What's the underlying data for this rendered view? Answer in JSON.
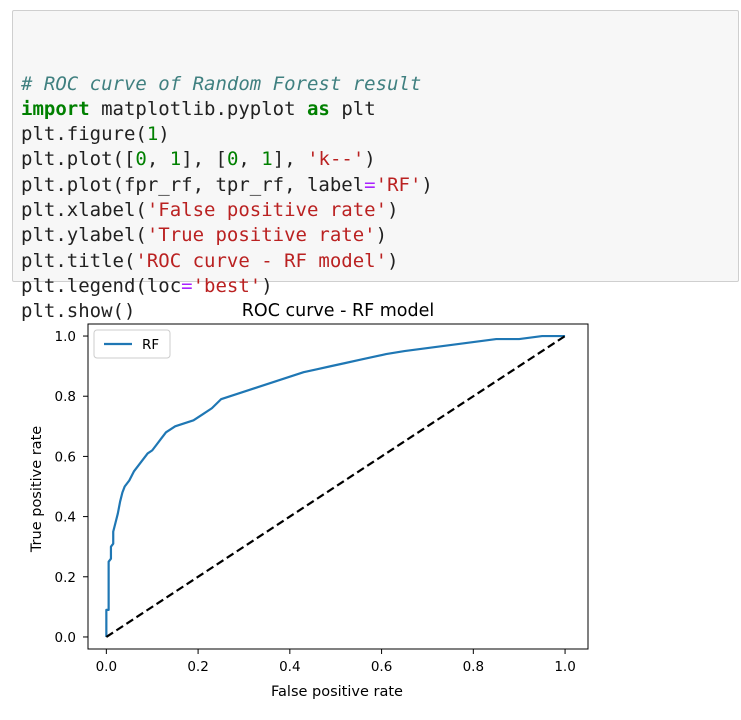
{
  "code": {
    "lines": [
      [
        {
          "t": "# ROC curve of Random Forest result",
          "c": "comment"
        }
      ],
      [
        {
          "t": "import",
          "c": "kw"
        },
        {
          "t": " matplotlib.pyplot ",
          "c": ""
        },
        {
          "t": "as",
          "c": "kw"
        },
        {
          "t": " plt",
          "c": ""
        }
      ],
      [
        {
          "t": "plt.figure(",
          "c": ""
        },
        {
          "t": "1",
          "c": "num"
        },
        {
          "t": ")",
          "c": ""
        }
      ],
      [
        {
          "t": "plt.plot([",
          "c": ""
        },
        {
          "t": "0",
          "c": "num"
        },
        {
          "t": ", ",
          "c": ""
        },
        {
          "t": "1",
          "c": "num"
        },
        {
          "t": "], [",
          "c": ""
        },
        {
          "t": "0",
          "c": "num"
        },
        {
          "t": ", ",
          "c": ""
        },
        {
          "t": "1",
          "c": "num"
        },
        {
          "t": "], ",
          "c": ""
        },
        {
          "t": "'k--'",
          "c": "str"
        },
        {
          "t": ")",
          "c": ""
        }
      ],
      [
        {
          "t": "plt.plot(fpr_rf, tpr_rf, label",
          "c": ""
        },
        {
          "t": "=",
          "c": "op"
        },
        {
          "t": "'RF'",
          "c": "str"
        },
        {
          "t": ")",
          "c": ""
        }
      ],
      [
        {
          "t": "plt.xlabel(",
          "c": ""
        },
        {
          "t": "'False positive rate'",
          "c": "str"
        },
        {
          "t": ")",
          "c": ""
        }
      ],
      [
        {
          "t": "plt.ylabel(",
          "c": ""
        },
        {
          "t": "'True positive rate'",
          "c": "str"
        },
        {
          "t": ")",
          "c": ""
        }
      ],
      [
        {
          "t": "plt.title(",
          "c": ""
        },
        {
          "t": "'ROC curve - RF model'",
          "c": "str"
        },
        {
          "t": ")",
          "c": ""
        }
      ],
      [
        {
          "t": "plt.legend(loc",
          "c": ""
        },
        {
          "t": "=",
          "c": "op"
        },
        {
          "t": "'best'",
          "c": "str"
        },
        {
          "t": ")",
          "c": ""
        }
      ],
      [
        {
          "t": "plt.show()",
          "c": ""
        }
      ]
    ]
  },
  "chart_data": {
    "type": "line",
    "title": "ROC curve - RF model",
    "xlabel": "False positive rate",
    "ylabel": "True positive rate",
    "xlim": [
      -0.04,
      1.05
    ],
    "ylim": [
      -0.04,
      1.04
    ],
    "xticks": [
      0.0,
      0.2,
      0.4,
      0.6,
      0.8,
      1.0
    ],
    "xtick_labels": [
      "0.0",
      "0.2",
      "0.4",
      "0.6",
      "0.8",
      "1.0"
    ],
    "yticks": [
      0.0,
      0.2,
      0.4,
      0.6,
      0.8,
      1.0
    ],
    "ytick_labels": [
      "0.0",
      "0.2",
      "0.4",
      "0.6",
      "0.8",
      "1.0"
    ],
    "grid": false,
    "legend_position": "upper-left",
    "series": [
      {
        "name": "RF",
        "style": "solid",
        "color": "#1f77b4",
        "x": [
          0.0,
          0.0,
          0.005,
          0.005,
          0.01,
          0.01,
          0.015,
          0.015,
          0.02,
          0.025,
          0.03,
          0.035,
          0.04,
          0.045,
          0.05,
          0.06,
          0.07,
          0.08,
          0.09,
          0.1,
          0.11,
          0.12,
          0.13,
          0.14,
          0.15,
          0.17,
          0.19,
          0.21,
          0.23,
          0.25,
          0.27,
          0.29,
          0.31,
          0.33,
          0.35,
          0.37,
          0.39,
          0.41,
          0.43,
          0.46,
          0.49,
          0.52,
          0.55,
          0.58,
          0.61,
          0.65,
          0.7,
          0.75,
          0.8,
          0.85,
          0.9,
          0.95,
          1.0
        ],
        "y": [
          0.0,
          0.09,
          0.09,
          0.25,
          0.26,
          0.3,
          0.31,
          0.35,
          0.38,
          0.41,
          0.45,
          0.48,
          0.5,
          0.51,
          0.52,
          0.55,
          0.57,
          0.59,
          0.61,
          0.62,
          0.64,
          0.66,
          0.68,
          0.69,
          0.7,
          0.71,
          0.72,
          0.74,
          0.76,
          0.79,
          0.8,
          0.81,
          0.82,
          0.83,
          0.84,
          0.85,
          0.86,
          0.87,
          0.88,
          0.89,
          0.9,
          0.91,
          0.92,
          0.93,
          0.94,
          0.95,
          0.96,
          0.97,
          0.98,
          0.99,
          0.99,
          1.0,
          1.0
        ]
      },
      {
        "name": "",
        "style": "dashed",
        "color": "#000000",
        "x": [
          0,
          1
        ],
        "y": [
          0,
          1
        ]
      }
    ]
  }
}
